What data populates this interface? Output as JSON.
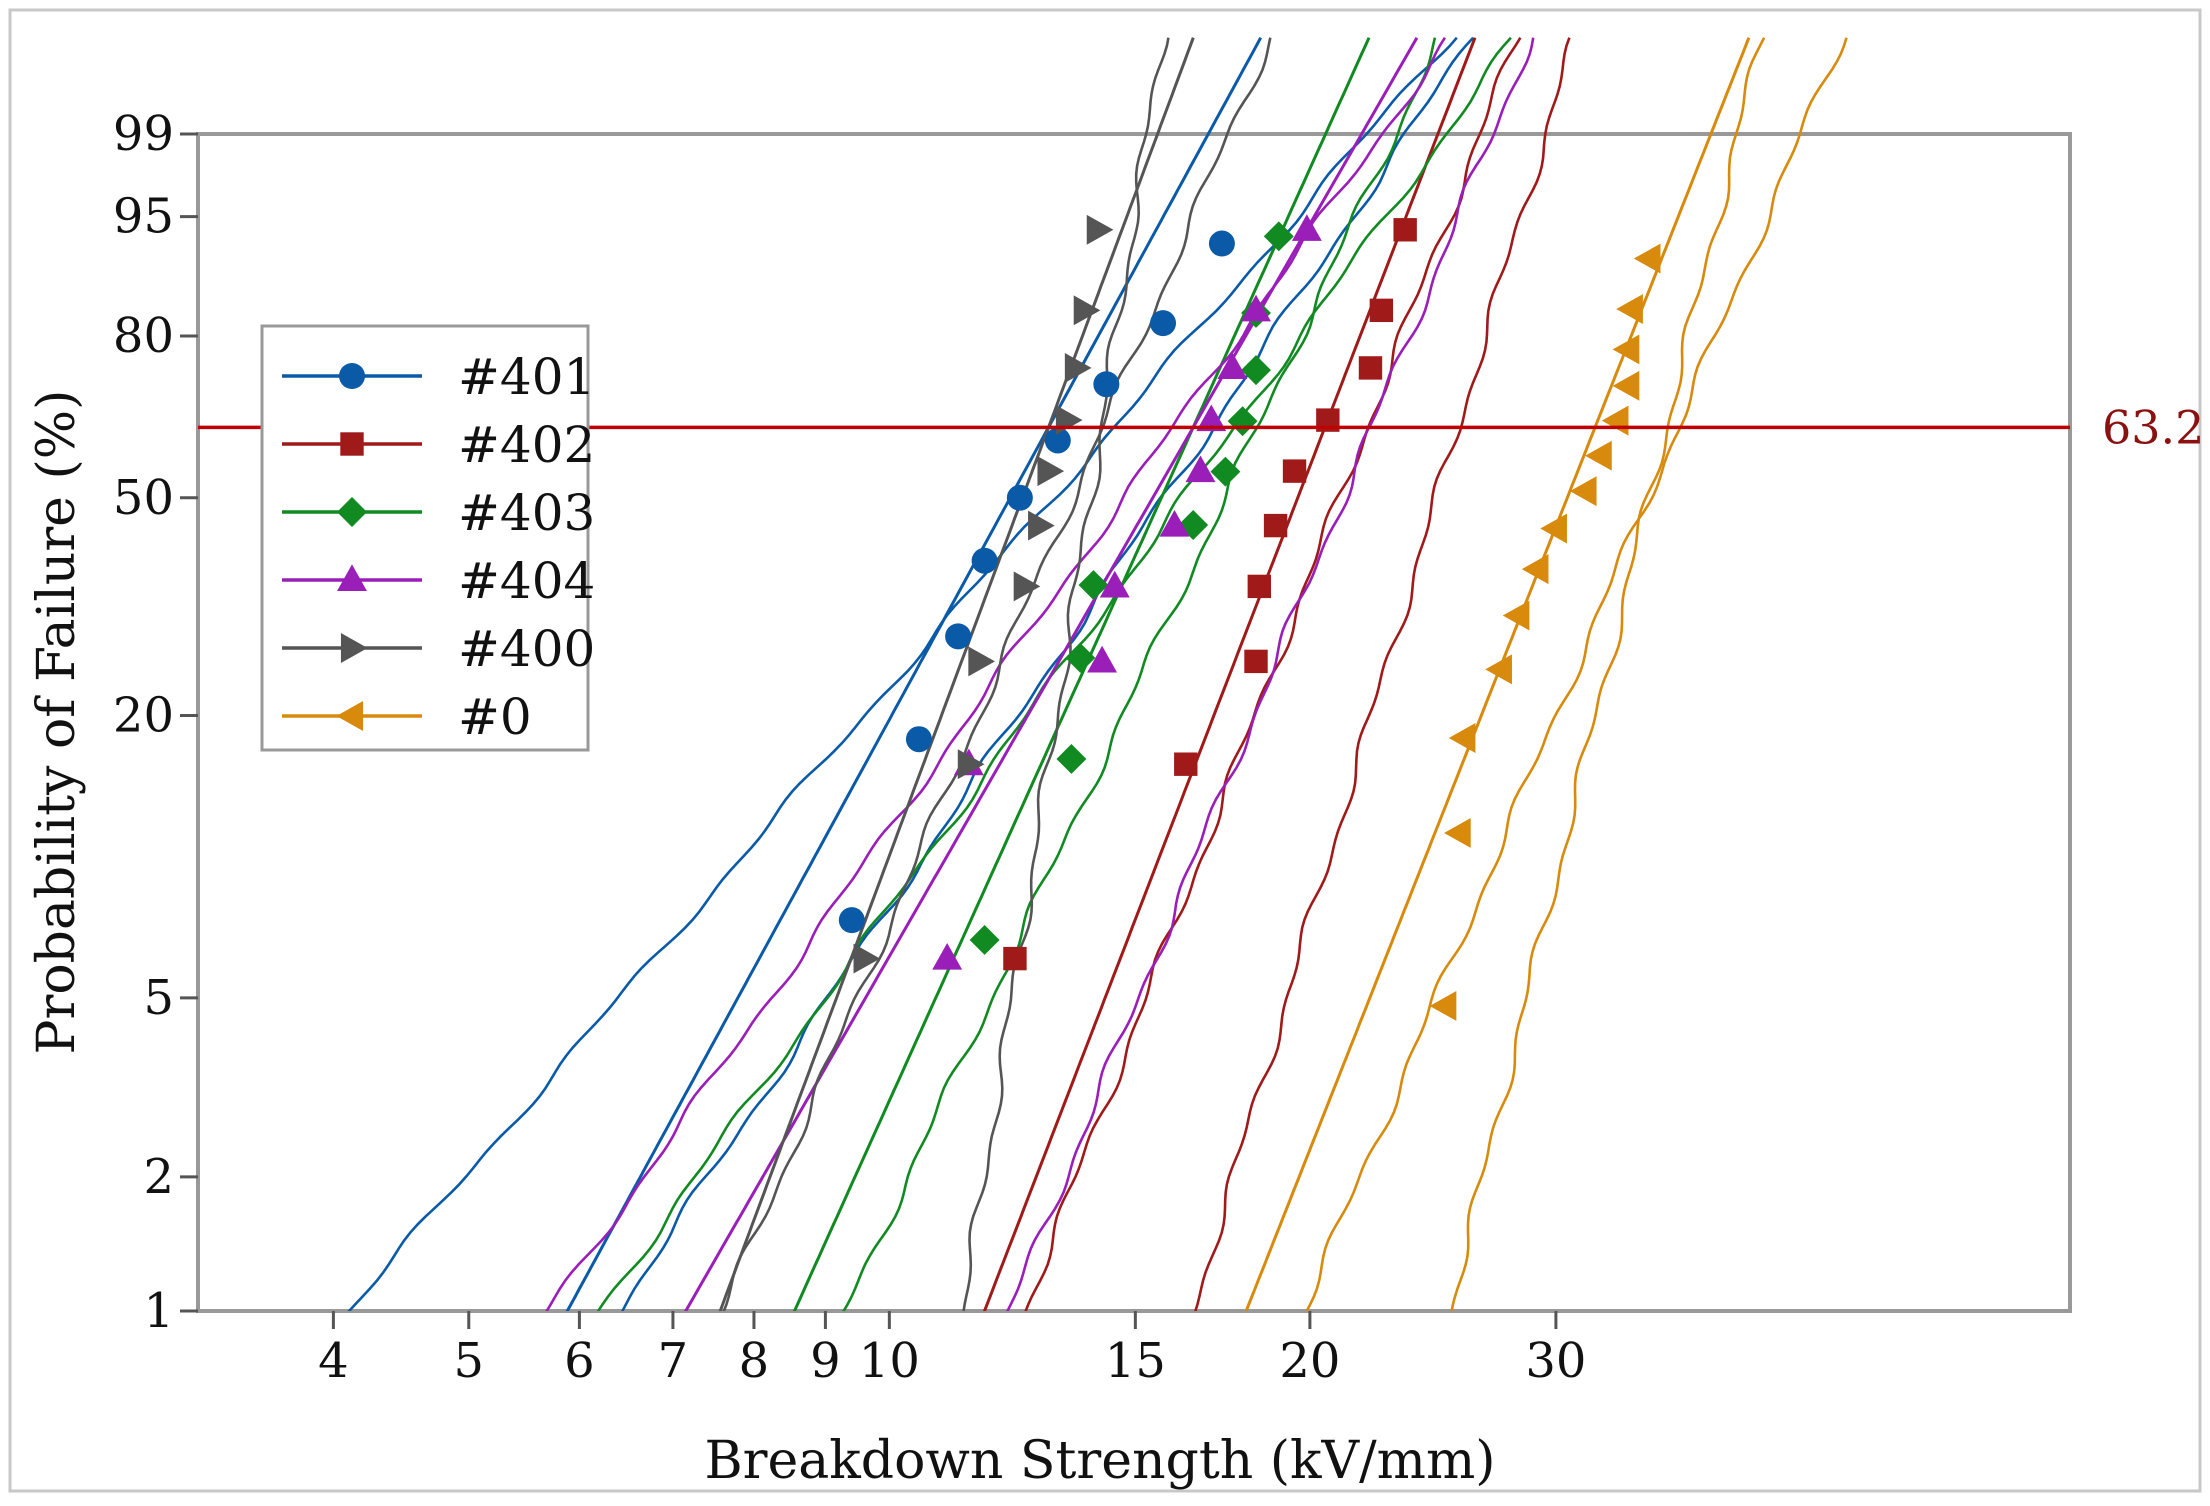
{
  "chart_data": {
    "type": "line",
    "title": "",
    "xlabel": "Breakdown Strength (kV/mm)",
    "ylabel": "Probability of Failure (%)",
    "x_scale": "log",
    "y_scale": "weibull",
    "xlim": [
      3.2,
      70
    ],
    "ylim": [
      1,
      99
    ],
    "x_ticks": [
      4,
      5,
      6,
      7,
      8,
      9,
      10,
      15,
      20,
      30
    ],
    "y_ticks": [
      1,
      2,
      5,
      20,
      50,
      80,
      95,
      99
    ],
    "grid": false,
    "legend_position": "upper-left",
    "reference_line": {
      "y": 63.2,
      "label": "63.2",
      "color": "#c00000"
    },
    "series": [
      {
        "name": "#401",
        "color": "#0a5aa8",
        "marker": "circle",
        "x": [
          9.4,
          10.5,
          11.2,
          11.7,
          12.4,
          13.2,
          14.3,
          15.7,
          17.3
        ],
        "y": [
          7.4,
          17.9,
          28.6,
          39.3,
          50.0,
          60.7,
          71.4,
          82.1,
          92.6
        ],
        "fit": {
          "x63": 13.0,
          "shape": 5.8
        },
        "ci_upper": {
          "x1": 6.4,
          "x99": 23.5
        },
        "ci_lower": {
          "x1": 4.1,
          "x99": 22.0
        }
      },
      {
        "name": "#402",
        "color": "#a01a1a",
        "marker": "square",
        "x": [
          12.3,
          16.3,
          18.3,
          18.4,
          18.9,
          19.5,
          20.6,
          22.1,
          22.5,
          23.4
        ],
        "y": [
          6.1,
          15.9,
          25.6,
          35.4,
          45.1,
          54.9,
          64.6,
          74.4,
          84.1,
          93.9
        ],
        "fit": {
          "x63": 20.5,
          "shape": 8.2
        },
        "ci_upper": {
          "x1": 16.5,
          "x99": 29.5
        },
        "ci_lower": {
          "x1": 12.5,
          "x99": 26.5
        }
      },
      {
        "name": "#403",
        "color": "#118a22",
        "marker": "diamond",
        "x": [
          11.7,
          13.5,
          13.7,
          14.0,
          16.5,
          17.4,
          17.9,
          18.3,
          18.3,
          19.0
        ],
        "y": [
          6.7,
          16.3,
          26.0,
          35.6,
          45.2,
          54.8,
          64.4,
          74.0,
          83.7,
          93.3
        ],
        "fit": {
          "x63": 16.5,
          "shape": 7.0
        },
        "ci_upper": {
          "x1": 9.3,
          "x99": 23.0
        },
        "ci_lower": {
          "x1": 6.2,
          "x99": 25.0
        }
      },
      {
        "name": "#404",
        "color": "#9a1eb8",
        "marker": "triangle-up",
        "x": [
          11.0,
          11.4,
          14.2,
          14.5,
          16.0,
          16.7,
          17.0,
          17.6,
          18.3,
          19.9
        ],
        "y": [
          6.1,
          15.9,
          25.6,
          35.4,
          45.1,
          54.9,
          64.6,
          74.4,
          84.1,
          93.9
        ],
        "fit": {
          "x63": 16.5,
          "shape": 5.5
        },
        "ci_upper": {
          "x1": 12.2,
          "x99": 27.0
        },
        "ci_lower": {
          "x1": 5.7,
          "x99": 22.5
        }
      },
      {
        "name": "#400",
        "color": "#555555",
        "marker": "triangle-right",
        "x": [
          9.6,
          11.4,
          11.6,
          12.5,
          12.8,
          13.0,
          13.4,
          13.6,
          13.8,
          14.1
        ],
        "y": [
          6.1,
          15.9,
          25.6,
          35.4,
          45.1,
          54.9,
          64.6,
          74.4,
          84.1,
          93.9
        ],
        "fit": {
          "x63": 13.0,
          "shape": 8.5
        },
        "ci_upper": {
          "x1": 11.3,
          "x99": 15.3
        },
        "ci_lower": {
          "x1": 7.6,
          "x99": 17.5
        }
      },
      {
        "name": "#0",
        "color": "#d88a0c",
        "marker": "triangle-left",
        "x": [
          25.0,
          25.6,
          25.8,
          27.4,
          28.2,
          29.1,
          30.0,
          31.5,
          32.3,
          33.2,
          33.8,
          33.8,
          34.0,
          35.0
        ],
        "y": [
          4.8,
          11.4,
          18.0,
          24.7,
          31.3,
          38.0,
          44.6,
          51.2,
          57.8,
          64.5,
          71.1,
          77.7,
          84.3,
          91.0
        ],
        "fit": {
          "x63": 32.0,
          "shape": 8.0
        },
        "ci_upper": {
          "x1": 25.2,
          "x99": 40.5
        },
        "ci_lower": {
          "x1": 19.8,
          "x99": 45.0
        }
      }
    ]
  }
}
